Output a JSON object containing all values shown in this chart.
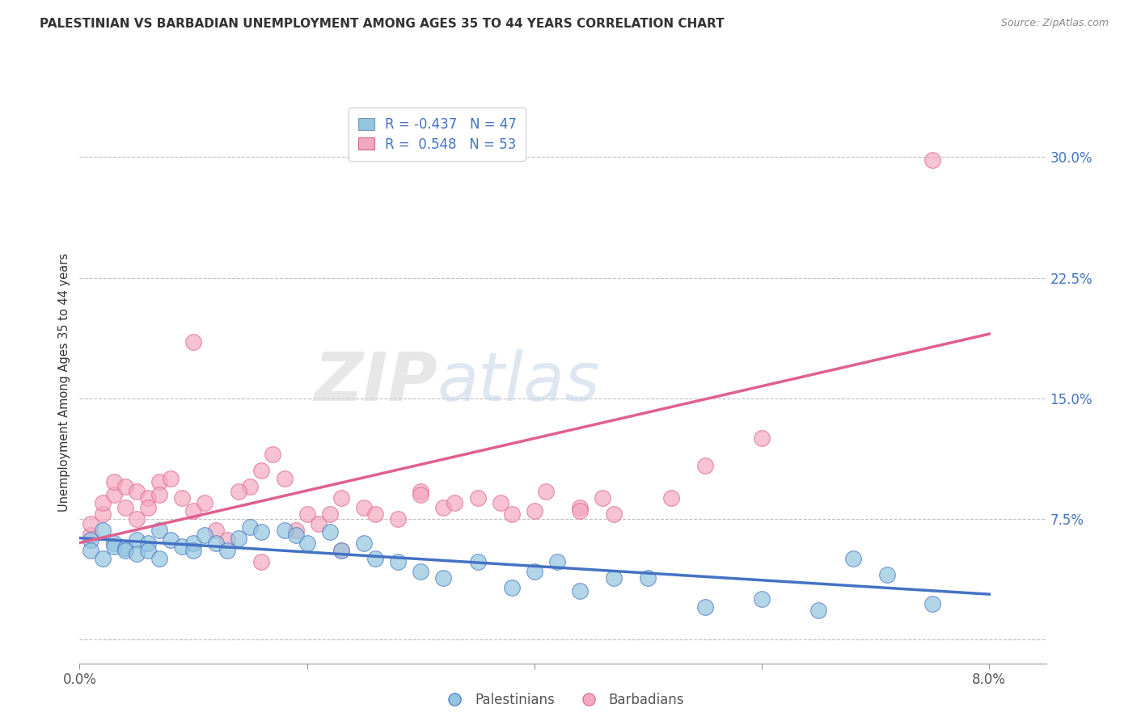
{
  "title": "PALESTINIAN VS BARBADIAN UNEMPLOYMENT AMONG AGES 35 TO 44 YEARS CORRELATION CHART",
  "source": "Source: ZipAtlas.com",
  "ylabel": "Unemployment Among Ages 35 to 44 years",
  "xlim": [
    0.0,
    0.085
  ],
  "ylim": [
    -0.015,
    0.335
  ],
  "ytick_vals": [
    0.0,
    0.075,
    0.15,
    0.225,
    0.3
  ],
  "ytick_labels": [
    "",
    "7.5%",
    "15.0%",
    "22.5%",
    "30.0%"
  ],
  "xtick_vals": [
    0.0,
    0.02,
    0.04,
    0.06,
    0.08
  ],
  "xtick_labels": [
    "0.0%",
    "",
    "",
    "",
    "8.0%"
  ],
  "blue_color": "#92C5DE",
  "pink_color": "#F4A8C0",
  "blue_line_color": "#4472C4",
  "pink_line_color": "#E06090",
  "legend_R_blue": "R = -0.437",
  "legend_N_blue": "N = 47",
  "legend_R_pink": "R =  0.548",
  "legend_N_pink": "N = 53",
  "label_palestinians": "Palestinians",
  "label_barbadians": "Barbadians",
  "blue_scatter_x": [
    0.001,
    0.001,
    0.002,
    0.002,
    0.003,
    0.003,
    0.004,
    0.004,
    0.005,
    0.005,
    0.006,
    0.006,
    0.007,
    0.007,
    0.008,
    0.009,
    0.01,
    0.01,
    0.011,
    0.012,
    0.013,
    0.014,
    0.015,
    0.016,
    0.018,
    0.019,
    0.02,
    0.022,
    0.023,
    0.025,
    0.026,
    0.028,
    0.03,
    0.032,
    0.035,
    0.038,
    0.04,
    0.042,
    0.044,
    0.047,
    0.05,
    0.055,
    0.06,
    0.065,
    0.068,
    0.071,
    0.075
  ],
  "blue_scatter_y": [
    0.062,
    0.055,
    0.068,
    0.05,
    0.06,
    0.058,
    0.057,
    0.055,
    0.062,
    0.053,
    0.06,
    0.055,
    0.068,
    0.05,
    0.062,
    0.058,
    0.06,
    0.055,
    0.065,
    0.06,
    0.055,
    0.063,
    0.07,
    0.067,
    0.068,
    0.065,
    0.06,
    0.067,
    0.055,
    0.06,
    0.05,
    0.048,
    0.042,
    0.038,
    0.048,
    0.032,
    0.042,
    0.048,
    0.03,
    0.038,
    0.038,
    0.02,
    0.025,
    0.018,
    0.05,
    0.04,
    0.022
  ],
  "pink_scatter_x": [
    0.001,
    0.001,
    0.002,
    0.002,
    0.003,
    0.003,
    0.004,
    0.004,
    0.005,
    0.005,
    0.006,
    0.006,
    0.007,
    0.007,
    0.008,
    0.009,
    0.01,
    0.011,
    0.012,
    0.013,
    0.015,
    0.016,
    0.017,
    0.019,
    0.02,
    0.021,
    0.022,
    0.023,
    0.025,
    0.028,
    0.03,
    0.032,
    0.035,
    0.038,
    0.041,
    0.044,
    0.047,
    0.052,
    0.055,
    0.06,
    0.014,
    0.018,
    0.026,
    0.033,
    0.04,
    0.046,
    0.01,
    0.016,
    0.023,
    0.03,
    0.037,
    0.044,
    0.075
  ],
  "pink_scatter_y": [
    0.065,
    0.072,
    0.078,
    0.085,
    0.09,
    0.098,
    0.082,
    0.095,
    0.075,
    0.092,
    0.088,
    0.082,
    0.098,
    0.09,
    0.1,
    0.088,
    0.08,
    0.085,
    0.068,
    0.062,
    0.095,
    0.105,
    0.115,
    0.068,
    0.078,
    0.072,
    0.078,
    0.088,
    0.082,
    0.075,
    0.092,
    0.082,
    0.088,
    0.078,
    0.092,
    0.082,
    0.078,
    0.088,
    0.108,
    0.125,
    0.092,
    0.1,
    0.078,
    0.085,
    0.08,
    0.088,
    0.185,
    0.048,
    0.055,
    0.09,
    0.085,
    0.08,
    0.298
  ],
  "blue_trend_x": [
    0.0,
    0.08
  ],
  "blue_trend_y": [
    0.063,
    0.028
  ],
  "pink_trend_x": [
    0.0,
    0.08
  ],
  "pink_trend_y": [
    0.06,
    0.19
  ]
}
